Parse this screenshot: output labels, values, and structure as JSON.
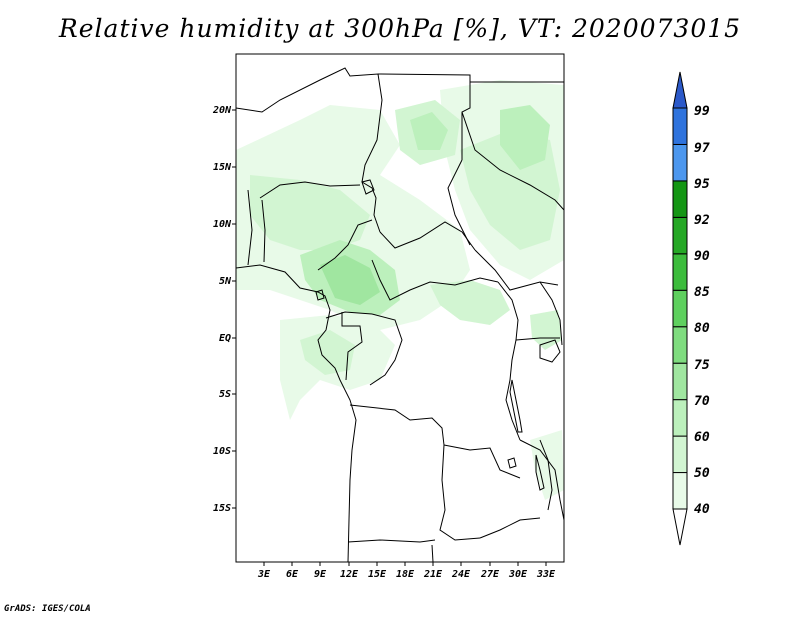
{
  "title": "Relative humidity at 300hPa [%], VT: 2020073015",
  "credit": "GrADS: IGES/COLA",
  "map": {
    "lat_ticks": [
      "20N",
      "15N",
      "10N",
      "5N",
      "EQ",
      "5S",
      "10S",
      "15S"
    ],
    "lon_ticks": [
      "3E",
      "6E",
      "9E",
      "12E",
      "15E",
      "18E",
      "21E",
      "24E",
      "27E",
      "30E",
      "33E"
    ]
  },
  "colorbar": {
    "levels": [
      "40",
      "50",
      "60",
      "70",
      "75",
      "80",
      "85",
      "90",
      "92",
      "95",
      "97",
      "99"
    ],
    "colors": [
      "#ffffff",
      "#e8fae8",
      "#d2f5d2",
      "#bcf0bc",
      "#a0e6a0",
      "#7fdc7f",
      "#5ed05e",
      "#3cbc3c",
      "#25a825",
      "#149614",
      "#4c97ee",
      "#2f73dd",
      "#2b59c9"
    ]
  }
}
